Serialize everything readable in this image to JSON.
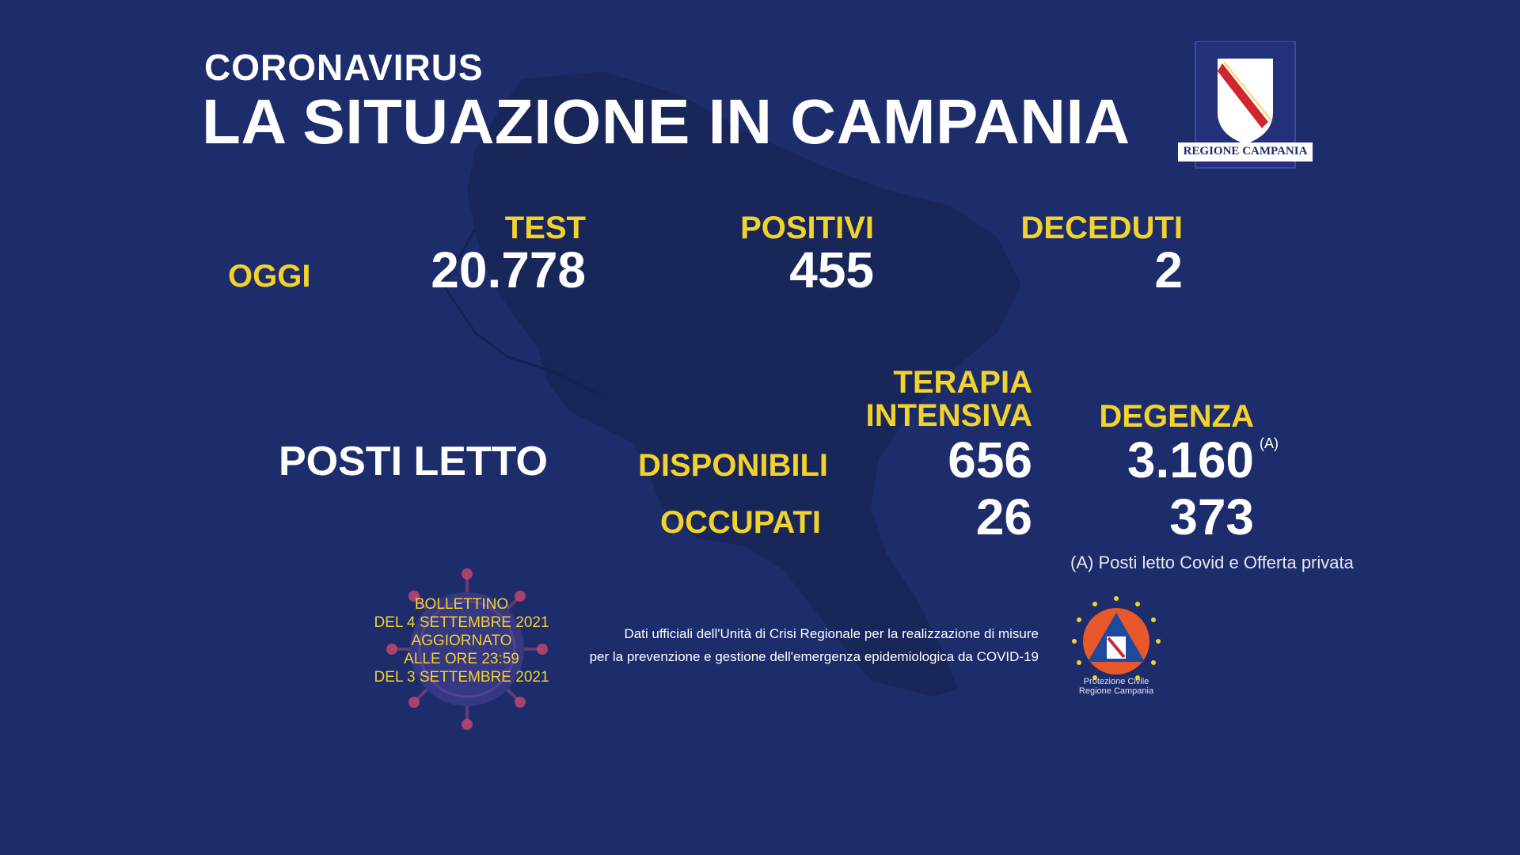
{
  "header": {
    "kicker": "CORONAVIRUS",
    "title": "LA SITUAZIONE IN CAMPANIA",
    "logo_text": "REGIONE CAMPANIA"
  },
  "today": {
    "row_label": "OGGI",
    "test_label": "TEST",
    "test_value": "20.778",
    "positivi_label": "POSITIVI",
    "positivi_value": "455",
    "deceduti_label": "DECEDUTI",
    "deceduti_value": "2"
  },
  "beds": {
    "section_label": "POSTI LETTO",
    "terapia_label_line1": "TERAPIA",
    "terapia_label_line2": "INTENSIVA",
    "degenza_label": "DEGENZA",
    "disponibili_label": "DISPONIBILI",
    "occupati_label": "OCCUPATI",
    "terapia_disponibili": "656",
    "degenza_disponibili": "3.160",
    "degenza_footnote_mark": "(A)",
    "terapia_occupati": "26",
    "degenza_occupati": "373",
    "footnote": "(A) Posti letto Covid e Offerta privata"
  },
  "bulletin": {
    "line1": "BOLLETTINO",
    "line2": "DEL 4 SETTEMBRE 2021",
    "line3": "AGGIORNATO",
    "line4": "ALLE ORE 23:59",
    "line5": "DEL 3 SETTEMBRE 2021"
  },
  "official": {
    "line1": "Dati ufficiali dell'Unità di Crisi Regionale per la realizzazione di misure",
    "line2": "per la prevenzione e gestione dell'emergenza epidemiologica da COVID-19"
  },
  "protezione_civile": {
    "line1": "Protezione Civile",
    "line2": "Regione Campania"
  },
  "colors": {
    "background": "#1d2d6c",
    "accent_yellow": "#f2d22c",
    "map_shade": "#182659",
    "text_white": "#ffffff"
  },
  "icons": {
    "logo": "regione-campania-shield-icon",
    "virus": "virus-icon",
    "protezione": "protezione-civile-icon"
  }
}
